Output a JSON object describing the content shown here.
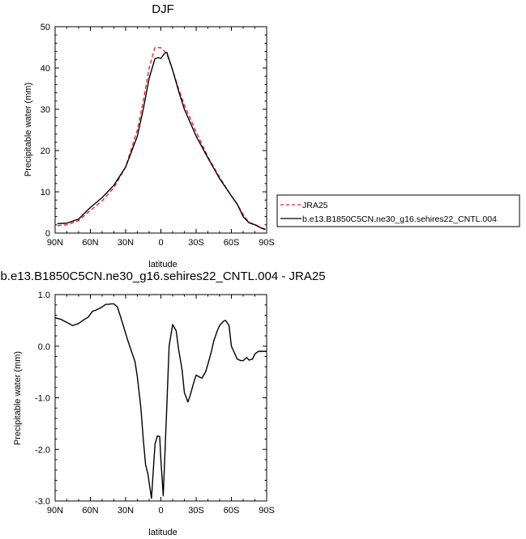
{
  "chart_data": [
    {
      "type": "line",
      "title": "DJF",
      "xlabel": "latitude",
      "ylabel": "Precipitable water (mm)",
      "xlim": [
        90,
        -90
      ],
      "ylim": [
        0,
        50
      ],
      "x_ticks": [
        90,
        60,
        30,
        0,
        -30,
        -60,
        -90
      ],
      "x_tick_labels": [
        "90N",
        "60N",
        "30N",
        "0",
        "30S",
        "60S",
        "90S"
      ],
      "y_ticks": [
        0,
        10,
        20,
        30,
        40,
        50
      ],
      "y_tick_labels": [
        "0",
        "10",
        "20",
        "30",
        "40",
        "50"
      ],
      "grid": false,
      "legend_position": "right",
      "series": [
        {
          "name": "JRA25",
          "color": "#e8262b",
          "dash": "dashed",
          "x": [
            88,
            80,
            70,
            60,
            50,
            40,
            30,
            20,
            15,
            10,
            5,
            0,
            -5,
            -10,
            -15,
            -20,
            -30,
            -40,
            -50,
            -60,
            -65,
            -70,
            -75,
            -80,
            -85,
            -89
          ],
          "y": [
            1.8,
            2.0,
            3.0,
            5.5,
            7.8,
            11.0,
            16.0,
            25.0,
            32.0,
            40.0,
            45.0,
            44.9,
            43.5,
            39.5,
            35.0,
            31.0,
            24.5,
            18.5,
            13.5,
            9.0,
            7.0,
            4.5,
            2.5,
            2.2,
            1.2,
            0.8
          ]
        },
        {
          "name": "b.e13.B1850C5CN.ne30_g16.sehires22_CNTL.004",
          "color": "#000000",
          "dash": "solid",
          "x": [
            88,
            80,
            70,
            60,
            50,
            40,
            30,
            20,
            15,
            10,
            5,
            2,
            0,
            -3,
            -5,
            -10,
            -15,
            -20,
            -30,
            -40,
            -50,
            -60,
            -65,
            -70,
            -75,
            -80,
            -85,
            -89
          ],
          "y": [
            2.3,
            2.4,
            3.4,
            6.2,
            8.6,
            11.6,
            16.0,
            23.5,
            30.0,
            37.5,
            42.3,
            42.5,
            42.3,
            43.5,
            43.8,
            39.5,
            34.5,
            30.0,
            23.5,
            18.2,
            13.2,
            9.0,
            7.0,
            4.0,
            2.5,
            2.0,
            1.3,
            0.9
          ]
        }
      ]
    },
    {
      "type": "line",
      "title": "b.e13.B1850C5CN.ne30_g16.sehires22_CNTL.004 - JRA25",
      "xlabel": "latitude",
      "ylabel": "Precipitable water (mm)",
      "xlim": [
        90,
        -90
      ],
      "ylim": [
        -3.0,
        1.0
      ],
      "x_ticks": [
        90,
        60,
        30,
        0,
        -30,
        -60,
        -90
      ],
      "x_tick_labels": [
        "90N",
        "60N",
        "30N",
        "0",
        "30S",
        "60S",
        "90S"
      ],
      "y_ticks": [
        1.0,
        0.0,
        -1.0,
        -2.0,
        -3.0
      ],
      "y_tick_labels": [
        "1.0",
        "0.0",
        "-1.0",
        "-2.0",
        "-3.0"
      ],
      "grid": false,
      "series": [
        {
          "color": "#000000",
          "dash": "solid",
          "x": [
            90,
            85,
            80,
            75,
            70,
            65,
            62,
            58,
            55,
            50,
            47,
            45,
            42,
            40,
            37,
            35,
            32,
            30,
            28,
            25,
            22,
            20,
            17,
            15,
            13,
            11,
            10,
            8,
            7,
            5,
            3,
            1,
            0,
            -2,
            -5,
            -7,
            -10,
            -13,
            -15,
            -18,
            -20,
            -23,
            -25,
            -28,
            -30,
            -33,
            -35,
            -38,
            -40,
            -43,
            -45,
            -48,
            -50,
            -53,
            -55,
            -58,
            -60,
            -63,
            -65,
            -68,
            -70,
            -73,
            -75,
            -78,
            -80,
            -83,
            -85,
            -88,
            -90
          ],
          "y": [
            0.55,
            0.52,
            0.46,
            0.4,
            0.44,
            0.52,
            0.56,
            0.68,
            0.7,
            0.76,
            0.81,
            0.81,
            0.82,
            0.82,
            0.76,
            0.62,
            0.4,
            0.25,
            0.1,
            -0.1,
            -0.3,
            -0.6,
            -1.2,
            -1.8,
            -2.3,
            -2.48,
            -2.64,
            -2.95,
            -2.6,
            -1.9,
            -1.74,
            -1.75,
            -2.2,
            -2.9,
            -1.2,
            0.0,
            0.42,
            0.3,
            -0.05,
            -0.45,
            -0.9,
            -1.08,
            -0.95,
            -0.7,
            -0.56,
            -0.6,
            -0.62,
            -0.5,
            -0.35,
            -0.1,
            0.1,
            0.3,
            0.4,
            0.48,
            0.5,
            0.4,
            0.0,
            -0.15,
            -0.25,
            -0.28,
            -0.28,
            -0.22,
            -0.27,
            -0.25,
            -0.15,
            -0.1,
            -0.1,
            -0.1,
            -0.1
          ]
        }
      ]
    }
  ]
}
